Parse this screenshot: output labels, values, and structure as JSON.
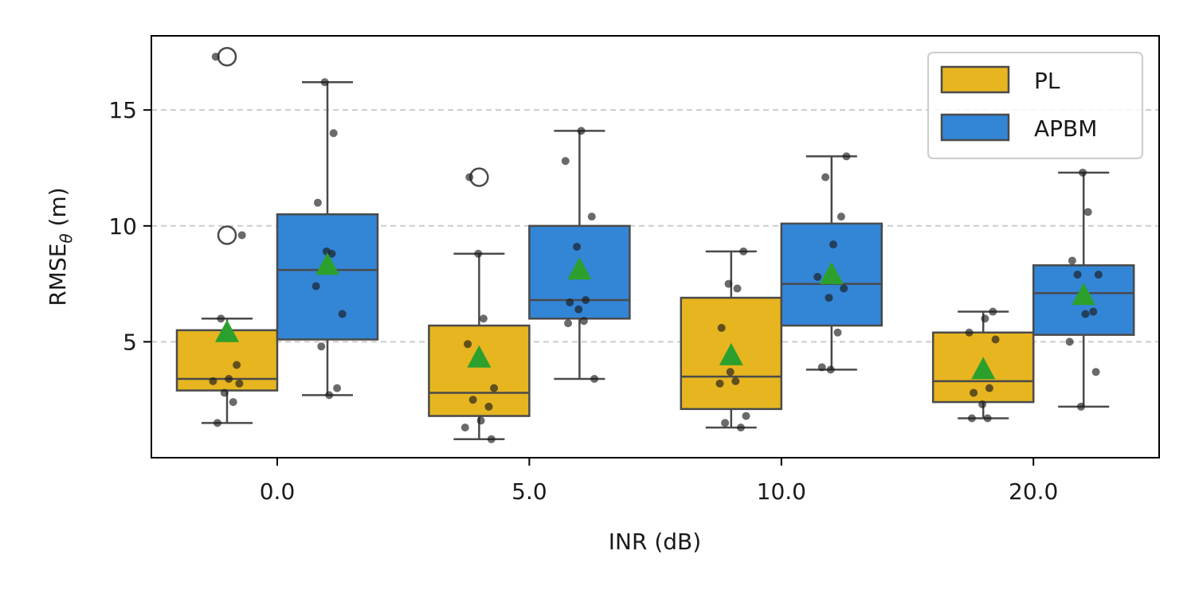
{
  "chart_data": {
    "type": "box",
    "xlabel": "INR (dB)",
    "ylabel": {
      "base": "RMSE",
      "subscript": "θ",
      "suffix": " (m)"
    },
    "categories": [
      "0.0",
      "5.0",
      "10.0",
      "20.0"
    ],
    "ylim": [
      0,
      18.2
    ],
    "yticks": [
      5,
      10,
      15
    ],
    "grid": {
      "y": true,
      "style": "dashed"
    },
    "legend": {
      "placement": "top-right",
      "entries": [
        "PL",
        "APBM"
      ]
    },
    "colors": {
      "PL": "#e6b520",
      "APBM": "#3385d6",
      "mean_marker": "#2ca02c",
      "edge": "#4a4a4a",
      "points": "#1a1a1a"
    },
    "series": [
      {
        "name": "PL",
        "boxes": [
          {
            "whisker_low": 1.5,
            "q1": 2.9,
            "median": 3.4,
            "q3": 5.5,
            "whisker_high": 6.0,
            "mean": 5.4,
            "outliers": [
              17.3,
              9.6
            ],
            "points": [
              1.5,
              2.4,
              2.8,
              3.2,
              3.3,
              3.4,
              4.0,
              6.0,
              9.6,
              17.3
            ]
          },
          {
            "whisker_low": 0.8,
            "q1": 1.8,
            "median": 2.8,
            "q3": 5.7,
            "whisker_high": 8.8,
            "mean": 4.3,
            "outliers": [
              12.1
            ],
            "points": [
              0.8,
              1.3,
              1.6,
              2.2,
              2.5,
              3.0,
              4.9,
              6.0,
              8.8,
              12.1
            ]
          },
          {
            "whisker_low": 1.3,
            "q1": 2.1,
            "median": 3.5,
            "q3": 6.9,
            "whisker_high": 8.9,
            "mean": 4.4,
            "outliers": [],
            "points": [
              1.3,
              1.5,
              1.8,
              3.2,
              3.3,
              3.7,
              5.6,
              7.3,
              7.5,
              8.9
            ]
          },
          {
            "whisker_low": 1.7,
            "q1": 2.4,
            "median": 3.3,
            "q3": 5.4,
            "whisker_high": 6.3,
            "mean": 3.8,
            "outliers": [],
            "points": [
              1.7,
              1.7,
              2.3,
              2.8,
              3.0,
              3.6,
              5.1,
              5.4,
              6.0,
              6.3
            ]
          }
        ]
      },
      {
        "name": "APBM",
        "boxes": [
          {
            "whisker_low": 2.7,
            "q1": 5.1,
            "median": 8.1,
            "q3": 10.5,
            "whisker_high": 16.2,
            "mean": 8.3,
            "outliers": [],
            "points": [
              2.7,
              3.0,
              4.8,
              6.2,
              7.4,
              8.8,
              8.9,
              11.0,
              14.0,
              16.2
            ]
          },
          {
            "whisker_low": 3.4,
            "q1": 6.0,
            "median": 6.8,
            "q3": 10.0,
            "whisker_high": 14.1,
            "mean": 8.1,
            "outliers": [],
            "points": [
              3.4,
              5.8,
              5.9,
              6.4,
              6.7,
              6.8,
              9.1,
              10.4,
              12.8,
              14.1
            ]
          },
          {
            "whisker_low": 3.8,
            "q1": 5.7,
            "median": 7.5,
            "q3": 10.1,
            "whisker_high": 13.0,
            "mean": 7.9,
            "outliers": [],
            "points": [
              3.8,
              3.9,
              5.4,
              6.9,
              7.3,
              7.8,
              9.2,
              10.4,
              12.1,
              13.0
            ]
          },
          {
            "whisker_low": 2.2,
            "q1": 5.3,
            "median": 7.1,
            "q3": 8.3,
            "whisker_high": 12.3,
            "mean": 7.0,
            "outliers": [],
            "points": [
              2.2,
              3.7,
              5.0,
              6.2,
              6.3,
              7.9,
              7.9,
              8.5,
              10.6,
              12.3
            ]
          }
        ]
      }
    ]
  }
}
